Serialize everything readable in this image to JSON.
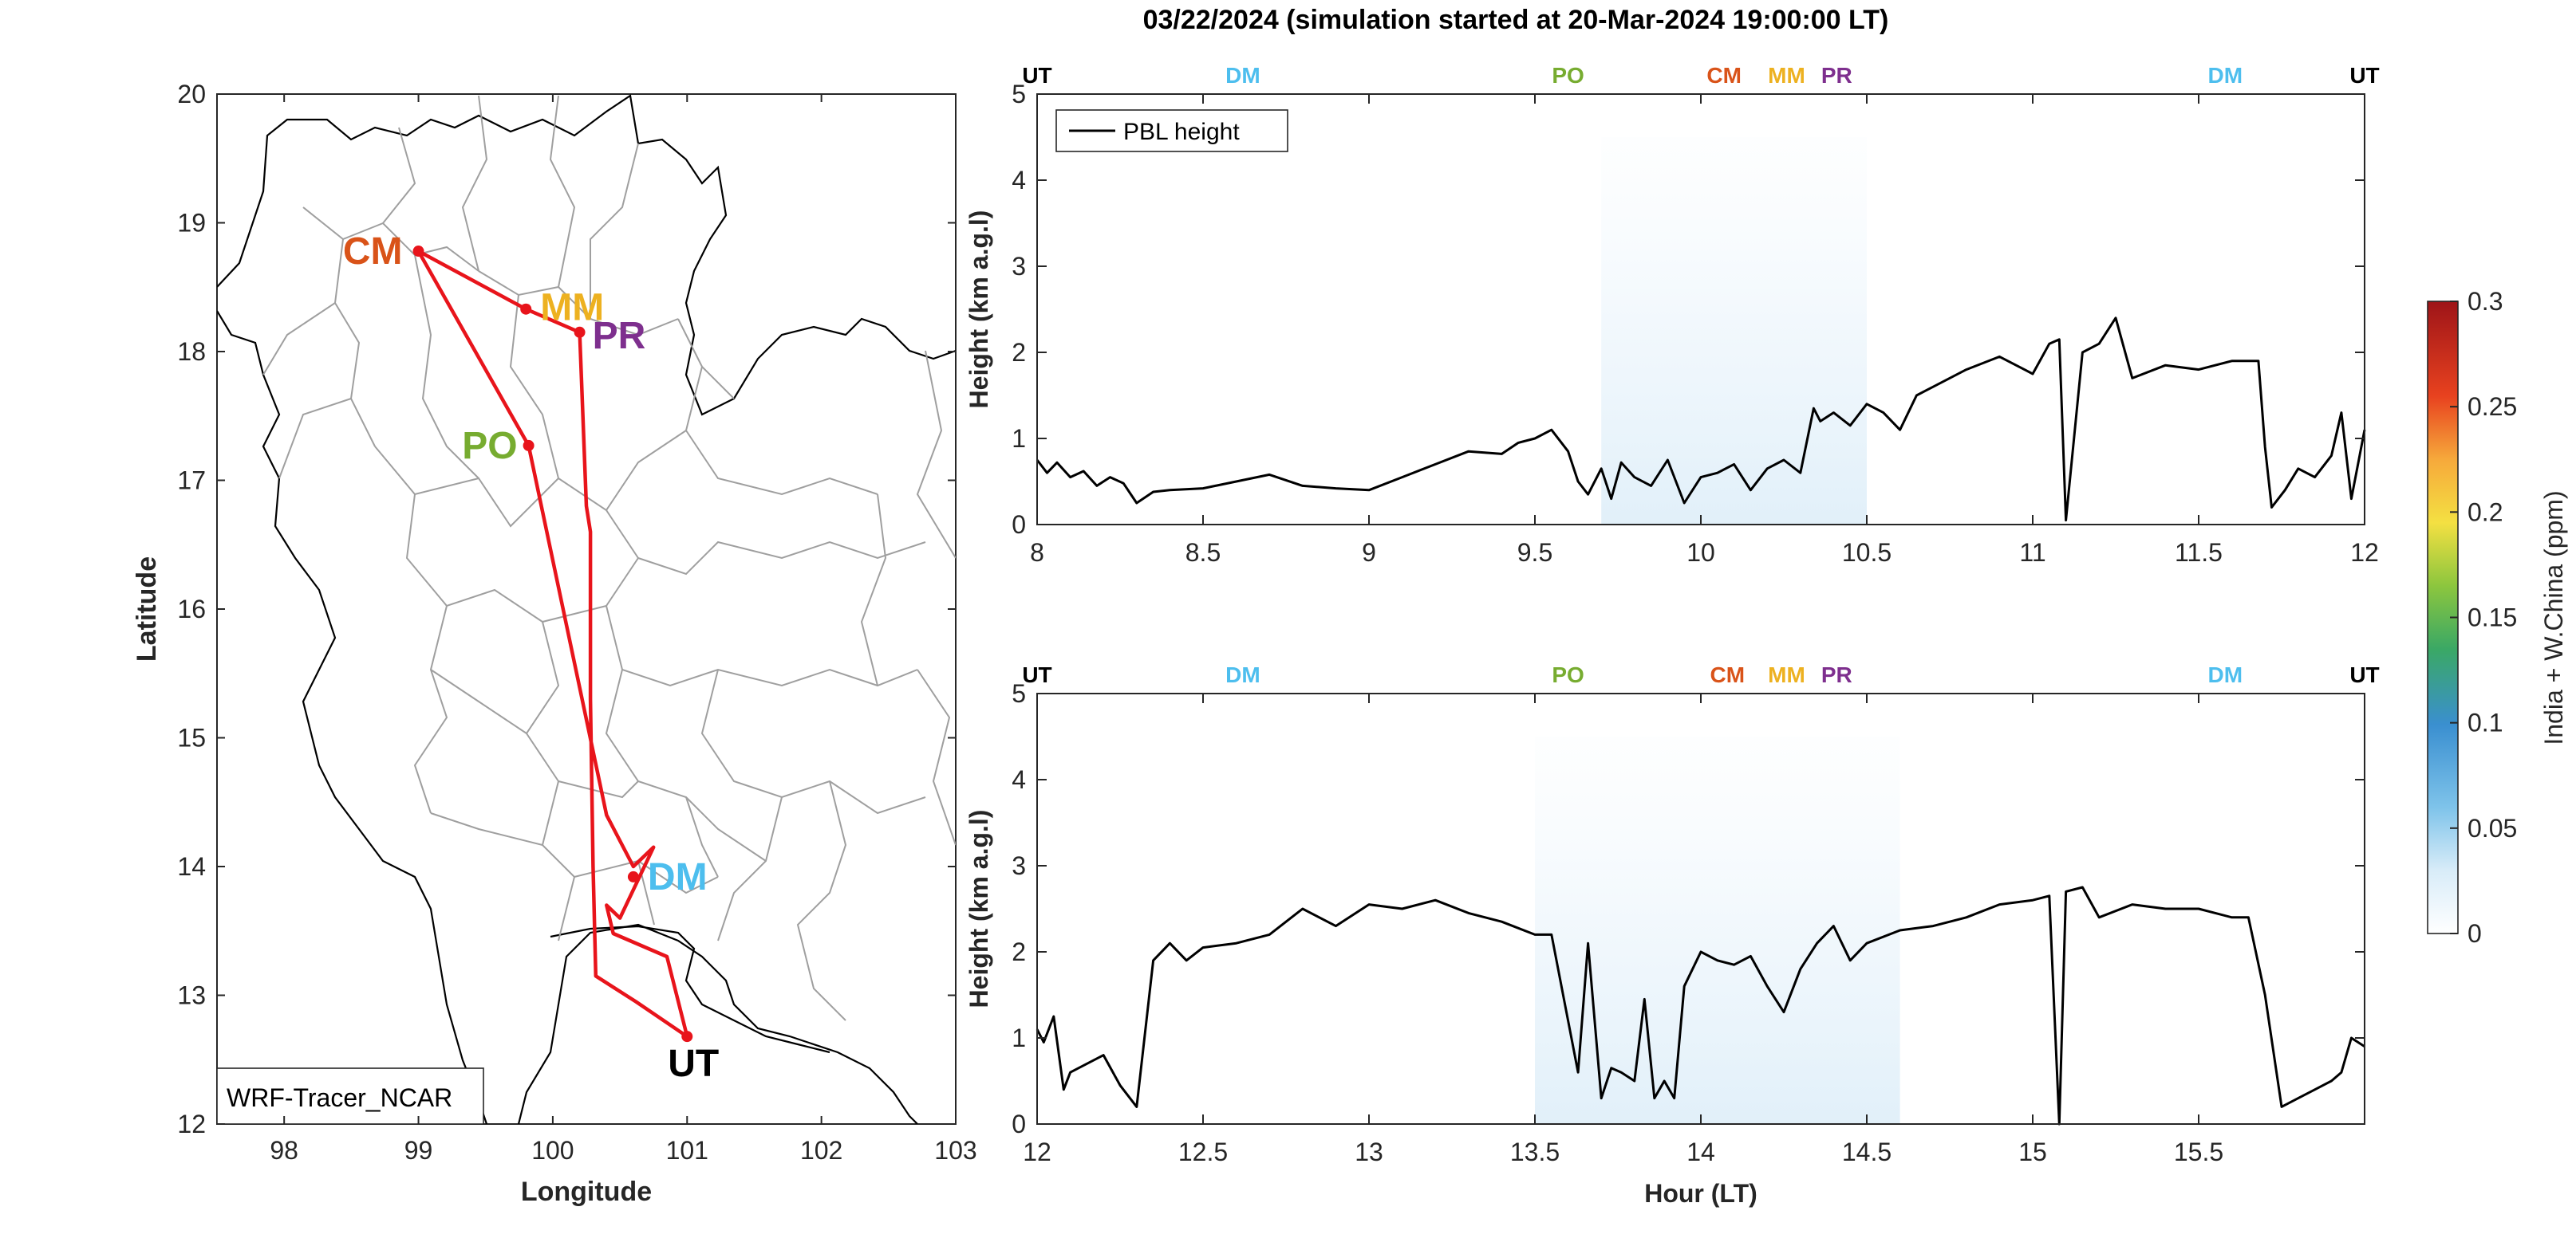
{
  "figure": {
    "title": "03/22/2024 (simulation started at 20-Mar-2024 19:00:00 LT)"
  },
  "map": {
    "xlabel": "Longitude",
    "ylabel": "Latitude",
    "xlim": [
      97.5,
      103
    ],
    "ylim": [
      12,
      20
    ],
    "xticks": [
      "98",
      "99",
      "100",
      "101",
      "102",
      "103"
    ],
    "yticks": [
      "12",
      "13",
      "14",
      "15",
      "16",
      "17",
      "18",
      "19",
      "20"
    ],
    "legend_text": "WRF-Tracer_NCAR",
    "track_color": "#e8141b",
    "sites": [
      {
        "label": "CM",
        "lon": 99.0,
        "lat": 18.78,
        "color": "#d95319"
      },
      {
        "label": "MM",
        "lon": 99.8,
        "lat": 18.33,
        "color": "#edb120"
      },
      {
        "label": "PR",
        "lon": 100.2,
        "lat": 18.15,
        "color": "#7e2f8e"
      },
      {
        "label": "PO",
        "lon": 99.82,
        "lat": 17.27,
        "color": "#77ac30"
      },
      {
        "label": "DM",
        "lon": 100.6,
        "lat": 13.92,
        "color": "#4dbeee"
      },
      {
        "label": "UT",
        "lon": 101.0,
        "lat": 12.68,
        "color": "#000000"
      }
    ],
    "track": [
      [
        101.0,
        12.68
      ],
      [
        100.62,
        12.95
      ],
      [
        100.32,
        13.15
      ],
      [
        100.3,
        14.0
      ],
      [
        100.28,
        15.3
      ],
      [
        100.28,
        16.6
      ],
      [
        100.25,
        16.8
      ],
      [
        100.2,
        18.15
      ],
      [
        99.8,
        18.33
      ],
      [
        99.0,
        18.78
      ],
      [
        99.82,
        17.27
      ],
      [
        100.4,
        14.4
      ],
      [
        100.6,
        14.0
      ],
      [
        100.75,
        14.15
      ],
      [
        100.5,
        13.6
      ],
      [
        100.4,
        13.7
      ],
      [
        100.45,
        13.48
      ],
      [
        100.85,
        13.3
      ],
      [
        101.0,
        12.68
      ]
    ]
  },
  "top_labels": {
    "UT": "UT",
    "DM": "DM",
    "PO": "PO",
    "CM": "CM",
    "MM": "MM",
    "PR": "PR"
  },
  "colorbar": {
    "label": "India + W.China (ppm)",
    "ticks": [
      "0",
      "0.05",
      "0.1",
      "0.15",
      "0.2",
      "0.25",
      "0.3"
    ],
    "range": [
      0,
      0.3
    ]
  },
  "chart_data": [
    {
      "type": "line",
      "panel": "top",
      "xlim": [
        8,
        12
      ],
      "ylim": [
        0,
        5
      ],
      "xlabel": "",
      "ylabel": "Height (km a.g.l)",
      "xticks": [
        "8",
        "8.5",
        "9",
        "9.5",
        "10",
        "10.5",
        "11",
        "11.5",
        "12"
      ],
      "yticks": [
        "0",
        "1",
        "2",
        "3",
        "4",
        "5"
      ],
      "legend": "PBL height",
      "site_marks": [
        {
          "label": "UT",
          "x": 8.0,
          "color": "#000000"
        },
        {
          "label": "DM",
          "x": 8.62,
          "color": "#4dbeee"
        },
        {
          "label": "PO",
          "x": 9.6,
          "color": "#77ac30"
        },
        {
          "label": "CM",
          "x": 10.07,
          "color": "#d95319"
        },
        {
          "label": "MM",
          "x": 10.3,
          "color": "#edb120"
        },
        {
          "label": "PR",
          "x": 10.43,
          "color": "#7e2f8e"
        },
        {
          "label": "DM",
          "x": 11.58,
          "color": "#4dbeee"
        },
        {
          "label": "UT",
          "x": 12.0,
          "color": "#000000"
        }
      ],
      "tracer_band": {
        "x": [
          9.7,
          10.5
        ],
        "max_ppm": 0.02
      },
      "series": [
        {
          "name": "PBL height",
          "x": [
            8.0,
            8.03,
            8.06,
            8.1,
            8.14,
            8.18,
            8.22,
            8.26,
            8.3,
            8.35,
            8.4,
            8.5,
            8.6,
            8.7,
            8.8,
            8.9,
            9.0,
            9.1,
            9.2,
            9.3,
            9.4,
            9.45,
            9.5,
            9.55,
            9.6,
            9.63,
            9.66,
            9.7,
            9.73,
            9.76,
            9.8,
            9.85,
            9.9,
            9.95,
            10.0,
            10.05,
            10.1,
            10.15,
            10.2,
            10.25,
            10.3,
            10.34,
            10.36,
            10.4,
            10.45,
            10.5,
            10.55,
            10.6,
            10.65,
            10.7,
            10.8,
            10.9,
            11.0,
            11.05,
            11.08,
            11.1,
            11.15,
            11.2,
            11.25,
            11.3,
            11.4,
            11.5,
            11.6,
            11.68,
            11.7,
            11.72,
            11.76,
            11.8,
            11.85,
            11.9,
            11.93,
            11.96,
            12.0
          ],
          "y": [
            0.75,
            0.6,
            0.72,
            0.55,
            0.62,
            0.45,
            0.55,
            0.48,
            0.25,
            0.38,
            0.4,
            0.42,
            0.5,
            0.58,
            0.45,
            0.42,
            0.4,
            0.55,
            0.7,
            0.85,
            0.82,
            0.95,
            1.0,
            1.1,
            0.85,
            0.5,
            0.35,
            0.65,
            0.3,
            0.72,
            0.55,
            0.45,
            0.75,
            0.25,
            0.55,
            0.6,
            0.7,
            0.4,
            0.65,
            0.75,
            0.6,
            1.35,
            1.2,
            1.3,
            1.15,
            1.4,
            1.3,
            1.1,
            1.5,
            1.6,
            1.8,
            1.95,
            1.75,
            2.1,
            2.15,
            0.05,
            2.0,
            2.1,
            2.4,
            1.7,
            1.85,
            1.8,
            1.9,
            1.9,
            0.9,
            0.2,
            0.4,
            0.65,
            0.55,
            0.8,
            1.3,
            0.3,
            1.1
          ]
        }
      ]
    },
    {
      "type": "line",
      "panel": "bottom",
      "xlim": [
        12,
        16
      ],
      "ylim": [
        0,
        5
      ],
      "xlabel": "Hour (LT)",
      "ylabel": "Height (km a.g.l)",
      "xticks": [
        "12",
        "12.5",
        "13",
        "13.5",
        "14",
        "14.5",
        "15",
        "15.5"
      ],
      "yticks": [
        "0",
        "1",
        "2",
        "3",
        "4",
        "5"
      ],
      "site_marks": [
        {
          "label": "UT",
          "x": 12.0,
          "color": "#000000"
        },
        {
          "label": "DM",
          "x": 12.62,
          "color": "#4dbeee"
        },
        {
          "label": "PO",
          "x": 13.6,
          "color": "#77ac30"
        },
        {
          "label": "CM",
          "x": 14.08,
          "color": "#d95319"
        },
        {
          "label": "MM",
          "x": 14.3,
          "color": "#edb120"
        },
        {
          "label": "PR",
          "x": 14.43,
          "color": "#7e2f8e"
        },
        {
          "label": "DM",
          "x": 15.58,
          "color": "#4dbeee"
        },
        {
          "label": "UT",
          "x": 16.0,
          "color": "#000000"
        }
      ],
      "tracer_band": {
        "x": [
          13.5,
          14.6
        ],
        "max_ppm": 0.02
      },
      "series": [
        {
          "name": "PBL height",
          "x": [
            12.0,
            12.02,
            12.05,
            12.08,
            12.1,
            12.2,
            12.25,
            12.3,
            12.35,
            12.4,
            12.45,
            12.5,
            12.6,
            12.7,
            12.8,
            12.9,
            13.0,
            13.1,
            13.2,
            13.3,
            13.4,
            13.5,
            13.55,
            13.6,
            13.63,
            13.66,
            13.7,
            13.73,
            13.76,
            13.8,
            13.83,
            13.86,
            13.89,
            13.92,
            13.95,
            14.0,
            14.05,
            14.1,
            14.15,
            14.2,
            14.25,
            14.3,
            14.35,
            14.4,
            14.45,
            14.5,
            14.6,
            14.7,
            14.8,
            14.9,
            15.0,
            15.05,
            15.08,
            15.1,
            15.15,
            15.2,
            15.3,
            15.4,
            15.5,
            15.6,
            15.65,
            15.7,
            15.75,
            15.8,
            15.85,
            15.9,
            15.93,
            15.96,
            16.0
          ],
          "y": [
            1.1,
            0.95,
            1.25,
            0.4,
            0.6,
            0.8,
            0.45,
            0.2,
            1.9,
            2.1,
            1.9,
            2.05,
            2.1,
            2.2,
            2.5,
            2.3,
            2.55,
            2.5,
            2.6,
            2.45,
            2.35,
            2.2,
            2.2,
            1.2,
            0.6,
            2.1,
            0.3,
            0.65,
            0.6,
            0.5,
            1.45,
            0.3,
            0.5,
            0.3,
            1.6,
            2.0,
            1.9,
            1.85,
            1.95,
            1.6,
            1.3,
            1.8,
            2.1,
            2.3,
            1.9,
            2.1,
            2.25,
            2.3,
            2.4,
            2.55,
            2.6,
            2.65,
            0.0,
            2.7,
            2.75,
            2.4,
            2.55,
            2.5,
            2.5,
            2.4,
            2.4,
            1.5,
            0.2,
            0.3,
            0.4,
            0.5,
            0.6,
            1.0,
            0.9
          ]
        }
      ]
    }
  ]
}
